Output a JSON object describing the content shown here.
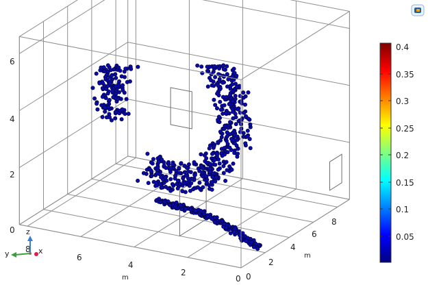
{
  "chart_data": {
    "type": "scatter",
    "axes": {
      "vertical": {
        "unit": "",
        "ticks": [
          "0",
          "2",
          "4",
          "6"
        ],
        "range": [
          0,
          6
        ]
      },
      "horizontal_left": {
        "unit": "m",
        "ticks": [
          "8",
          "6",
          "4",
          "2",
          "0"
        ],
        "range": [
          0,
          8
        ]
      },
      "horizontal_right": {
        "unit": "m",
        "ticks": [
          "0",
          "2",
          "4",
          "6",
          "8"
        ],
        "range": [
          0,
          8
        ]
      }
    },
    "colorbar": {
      "ticks": [
        "0.4",
        "0.35",
        "0.3",
        "0.25",
        "0.2",
        "0.15",
        "0.1",
        "0.05"
      ],
      "range": [
        0,
        0.4
      ],
      "colormap": [
        "#000080",
        "#0000ff",
        "#0080ff",
        "#00ffff",
        "#80ff80",
        "#ffff00",
        "#ff8000",
        "#ff0000",
        "#800000"
      ]
    },
    "point_color": "#0a0aa8",
    "point_value": 0.0,
    "grid": true
  },
  "triad": {
    "x_label": "x",
    "y_label": "y",
    "z_label": "z"
  },
  "logo_icon": "comsol-logo-icon"
}
